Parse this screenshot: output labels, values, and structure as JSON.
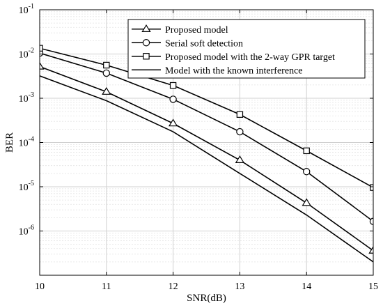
{
  "chart_data": {
    "type": "line",
    "title": "",
    "xlabel": "SNR(dB)",
    "ylabel": "BER",
    "xlim": [
      10,
      15
    ],
    "ylim": [
      1e-07,
      0.1
    ],
    "yscale": "log",
    "grid": true,
    "minor_grid": true,
    "legend_position": "top-right",
    "x_ticks": [
      "10",
      "11",
      "12",
      "13",
      "14",
      "15"
    ],
    "y_ticks": [
      {
        "base": "10",
        "exp": "-6"
      },
      {
        "base": "10",
        "exp": "-5"
      },
      {
        "base": "10",
        "exp": "-4"
      },
      {
        "base": "10",
        "exp": "-3"
      },
      {
        "base": "10",
        "exp": "-2"
      },
      {
        "base": "10",
        "exp": "-1"
      }
    ],
    "x": [
      10,
      11,
      12,
      13,
      14,
      15
    ],
    "series": [
      {
        "name": "Proposed model",
        "marker": "triangle",
        "color": "#000000",
        "values": [
          0.0052,
          0.0014,
          0.00027,
          4e-05,
          4.3e-06,
          3.6e-07
        ]
      },
      {
        "name": "Serial soft detection",
        "marker": "circle",
        "color": "#000000",
        "values": [
          0.0105,
          0.0037,
          0.00095,
          0.000175,
          2.2e-05,
          1.65e-06
        ]
      },
      {
        "name": "Proposed model with the 2-way GPR target",
        "marker": "square",
        "color": "#000000",
        "values": [
          0.0135,
          0.0056,
          0.00195,
          0.00043,
          6.5e-05,
          9.6e-06
        ]
      },
      {
        "name": "Model with the known interference",
        "marker": "none",
        "color": "#000000",
        "values": [
          0.0032,
          0.00088,
          0.000175,
          2e-05,
          2.3e-06,
          2e-07
        ]
      }
    ]
  }
}
